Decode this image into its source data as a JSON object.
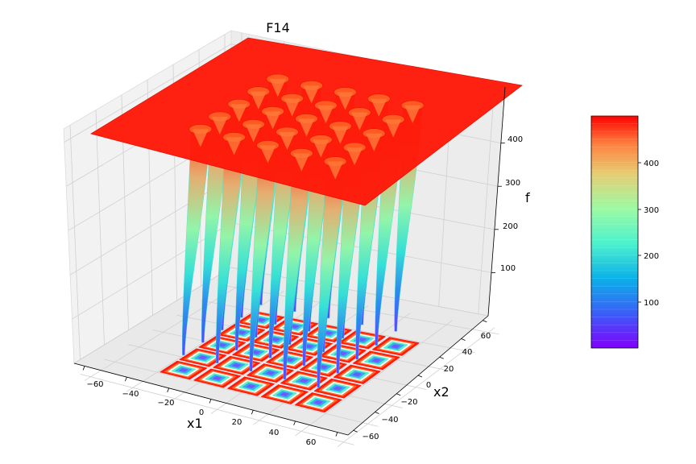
{
  "chart_data": {
    "type": "surface3d",
    "title": "F14",
    "xlabel": "x1",
    "ylabel": "x2",
    "zlabel": "f",
    "x_ticks": [
      "−60",
      "−40",
      "−20",
      "0",
      "20",
      "40",
      "60"
    ],
    "y_ticks": [
      "−60",
      "−40",
      "−20",
      "0",
      "20",
      "40",
      "60"
    ],
    "z_ticks": [
      "100",
      "200",
      "300",
      "400"
    ],
    "colorbar_ticks": [
      "100",
      "200",
      "300",
      "400"
    ],
    "xlim": [
      -65,
      65
    ],
    "ylim": [
      -65,
      65
    ],
    "zlim": [
      0,
      500
    ],
    "plateau_value": 500,
    "well_centers": [
      -32,
      -16,
      0,
      16,
      32
    ],
    "well_min": 1,
    "colormap": "rainbow",
    "colorbar_range": [
      1,
      500
    ],
    "contour_projection": "bottom",
    "grid": true,
    "colors": {
      "pane": "#f2f2f2",
      "grid": "#d0d0d0",
      "plateau": "#ff1a0a"
    }
  }
}
